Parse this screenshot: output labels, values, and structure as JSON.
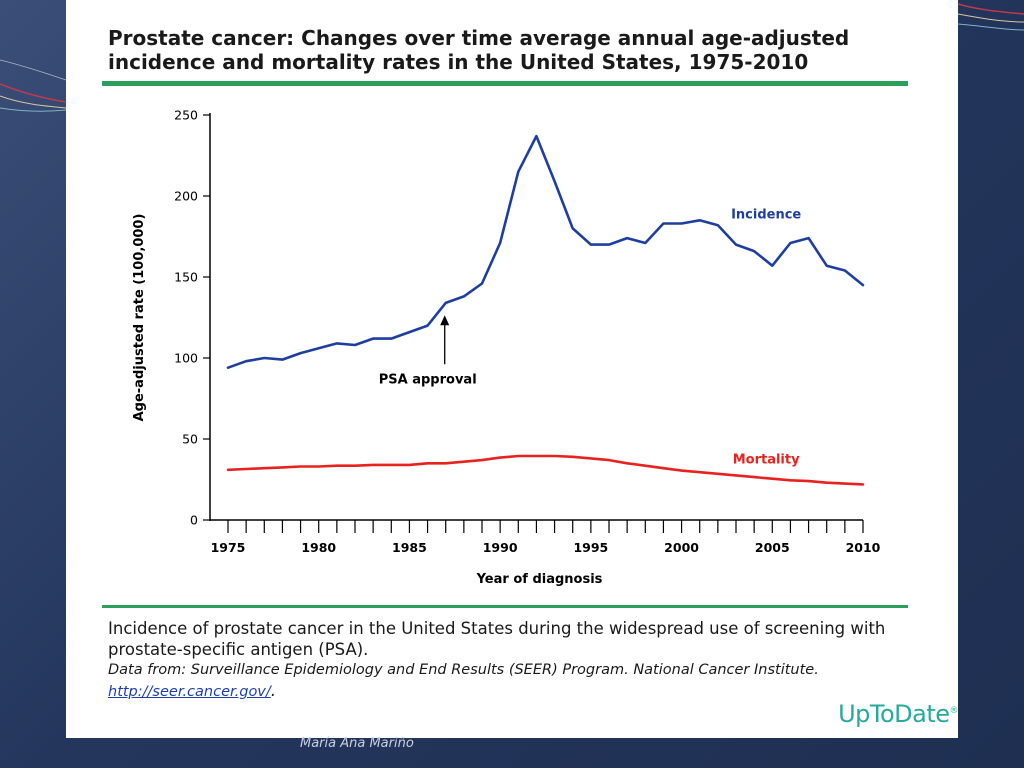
{
  "slide": {
    "author": "María Ana Mariño",
    "brand": "UpToDate",
    "brand_mark": "®"
  },
  "colors": {
    "incidence": "#1f3fa0",
    "mortality": "#e8231f",
    "rule": "#2aa05a",
    "brand": "#27a99b"
  },
  "figure": {
    "title": "Prostate cancer: Changes over time average annual age-adjusted incidence and mortality rates in the United States, 1975-2010",
    "caption": "Incidence of prostate cancer in the United States during the widespread use of screening with prostate-specific antigen (PSA).",
    "source": "Data from: Surveillance Epidemiology and End Results (SEER) Program. National Cancer Institute.",
    "link": "http://seer.cancer.gov/",
    "link_suffix": "."
  },
  "chart_data": {
    "type": "line",
    "xlabel": "Year of diagnosis",
    "ylabel": "Age-adjusted rate (100,000)",
    "xlim": [
      1975,
      2010
    ],
    "ylim": [
      0,
      250
    ],
    "x_ticks": [
      1975,
      1980,
      1985,
      1990,
      1995,
      2000,
      2005,
      2010
    ],
    "y_ticks": [
      0,
      50,
      100,
      150,
      200,
      250
    ],
    "grid": false,
    "x": [
      1975,
      1976,
      1977,
      1978,
      1979,
      1980,
      1981,
      1982,
      1983,
      1984,
      1985,
      1986,
      1987,
      1988,
      1989,
      1990,
      1991,
      1992,
      1993,
      1994,
      1995,
      1996,
      1997,
      1998,
      1999,
      2000,
      2001,
      2002,
      2003,
      2004,
      2005,
      2006,
      2007,
      2008,
      2009,
      2010
    ],
    "series": [
      {
        "name": "Incidence",
        "color": "#1f3fa0",
        "values": [
          94,
          98,
          100,
          99,
          103,
          106,
          109,
          108,
          112,
          112,
          116,
          120,
          134,
          138,
          146,
          171,
          215,
          237,
          209,
          180,
          170,
          170,
          174,
          171,
          183,
          183,
          185,
          182,
          170,
          166,
          157,
          171,
          174,
          157,
          154,
          145
        ]
      },
      {
        "name": "Mortality",
        "color": "#e8231f",
        "values": [
          31,
          31.5,
          32,
          32.5,
          33,
          33,
          33.5,
          33.5,
          34,
          34,
          34,
          35,
          35,
          36,
          37,
          38.5,
          39.5,
          39.5,
          39.5,
          39,
          38,
          37,
          35,
          33.5,
          32,
          30.5,
          29.5,
          28.5,
          27.5,
          26.5,
          25.5,
          24.5,
          24,
          23,
          22.5,
          22
        ]
      }
    ],
    "annotations": [
      {
        "text": "PSA approval",
        "x": 1987,
        "y": 127
      }
    ]
  }
}
